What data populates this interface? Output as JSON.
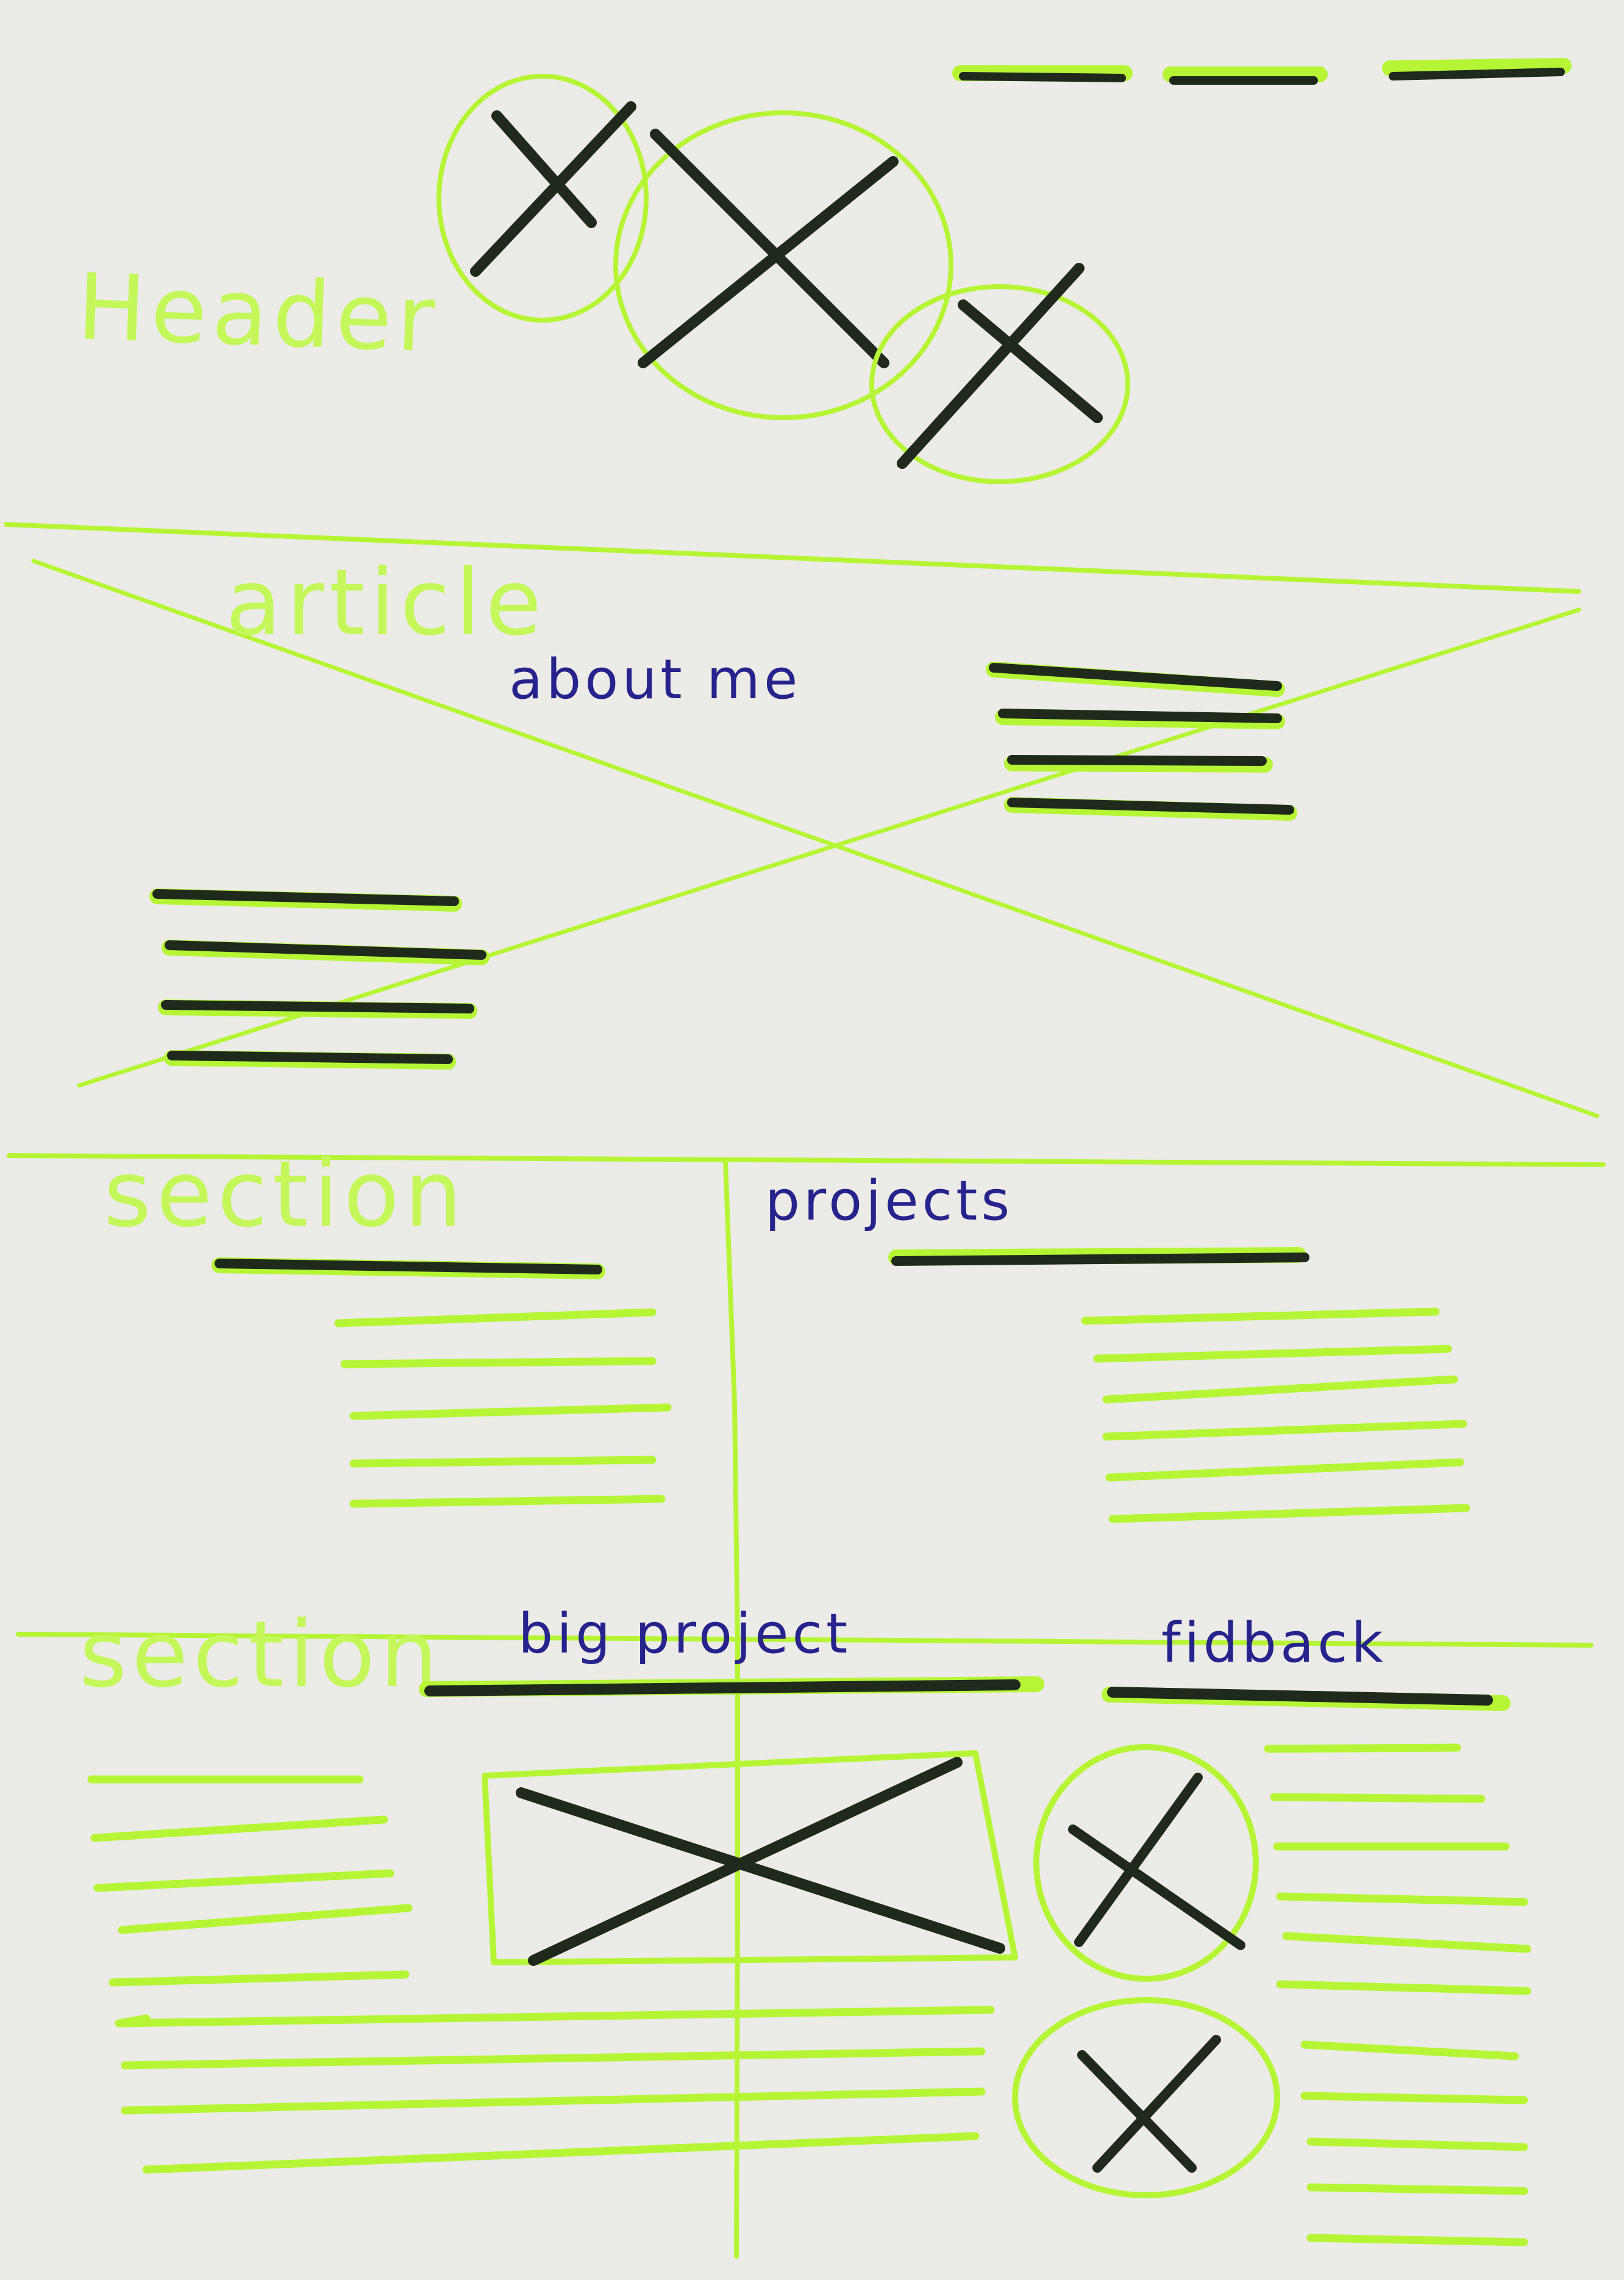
{
  "labels": {
    "header": "Header",
    "article": "article",
    "about": "about me",
    "section_left_top": "section",
    "projects": "projects",
    "section_left_bottom": "section",
    "big_project": "big project",
    "feedback": "fidback"
  },
  "colors": {
    "paper": "#ecebe8",
    "highlighter": "#b6f536",
    "marker": "#1f2a1c",
    "pen": "#26238c"
  }
}
